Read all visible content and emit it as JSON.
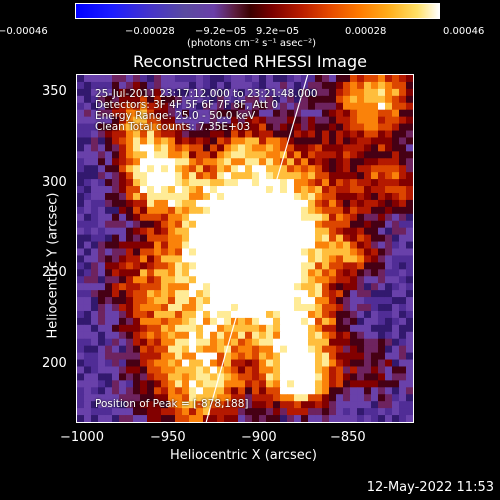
{
  "colorbar": {
    "ticks": [
      "−0.00046",
      "−0.00028",
      "−9.2e−05",
      "9.2e−05",
      "0.00028",
      "0.00046"
    ],
    "units": "(photons cm⁻² s⁻¹ asec⁻²)"
  },
  "plot": {
    "title": "Reconstructed RHESSI Image",
    "annotation": {
      "time_range": "25-Jul-2011 23:17:12.000 to 23:21:48.000",
      "detectors": "Detectors: 3F 4F 5F 6F 7F 8F, Att 0",
      "energy": "Energy Range: 25.0 - 50.0 keV",
      "method": "Clean    Total counts: 7.35E+03",
      "peak": "Position of Peak = [-878,188]"
    },
    "x_axis": {
      "label": "Heliocentric X (arcsec)",
      "ticks": [
        "−1000",
        "−950",
        "−900",
        "−850"
      ]
    },
    "y_axis": {
      "label": "Heliocentric Y (arcsec)",
      "ticks": [
        "350",
        "300",
        "250",
        "200"
      ]
    }
  },
  "footer": {
    "date": "12-May-2022 11:53"
  },
  "colors": {
    "limb": "#ffffff",
    "background": "#000000"
  }
}
